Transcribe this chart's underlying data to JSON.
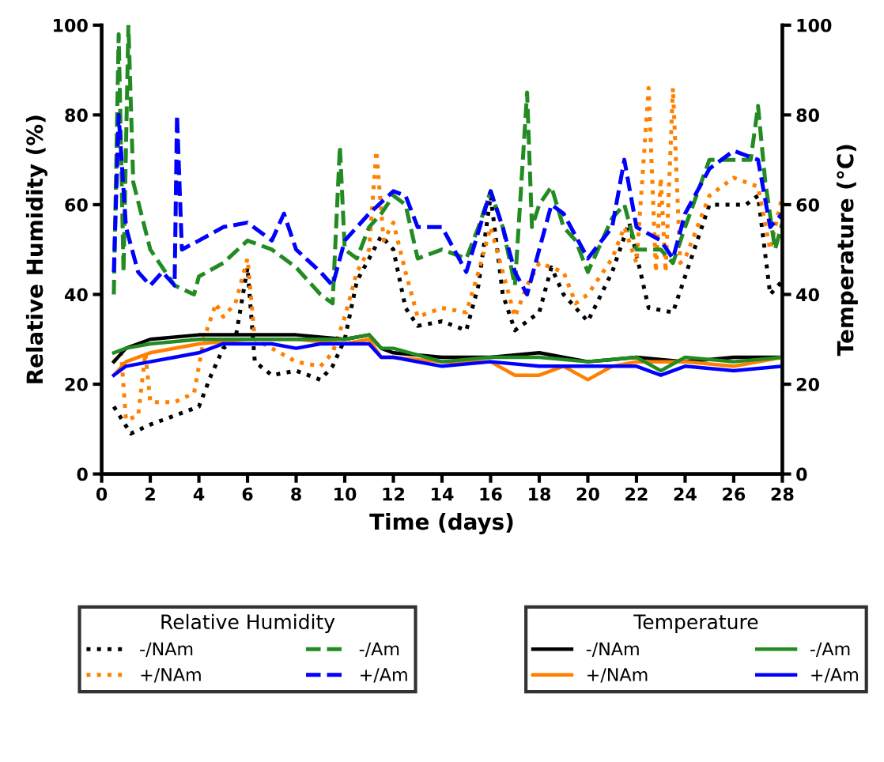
{
  "chart_data": {
    "type": "line",
    "xlabel": "Time (days)",
    "ylabel": "Relative Humidity (%)",
    "y2label": "Temperature (°C)",
    "xlim": [
      0,
      28
    ],
    "xticks": [
      0,
      2,
      4,
      6,
      8,
      10,
      12,
      14,
      16,
      18,
      20,
      22,
      24,
      26,
      28
    ],
    "ylim": [
      0,
      100
    ],
    "yticks": [
      0,
      20,
      40,
      60,
      80,
      100
    ],
    "y2lim": [
      0,
      100
    ],
    "y2ticks": [
      0,
      20,
      40,
      60,
      80,
      100
    ],
    "legend": "bottom",
    "legend_title": [
      "Relative Humidity",
      "Temperature"
    ],
    "grid": false,
    "marker": "none",
    "series": [
      {
        "name": "-/NAm",
        "color": "#000000",
        "axis": "y",
        "line_style": "dotted",
        "x": [
          0.5,
          1.2,
          2,
          3,
          4,
          4.5,
          5,
          5.5,
          6,
          6.3,
          7,
          8,
          9,
          9.5,
          10,
          10.5,
          11,
          11.5,
          12,
          12.5,
          13,
          14,
          15,
          15.5,
          16,
          16.5,
          17,
          18,
          18.5,
          19,
          20,
          21,
          21.7,
          22.5,
          23.5,
          24,
          25,
          26,
          26.5,
          27,
          27.5,
          28
        ],
        "values": [
          15,
          9,
          11,
          13,
          15,
          22,
          28,
          30,
          46,
          25,
          22,
          23,
          21,
          24,
          30,
          43,
          48,
          53,
          50,
          37,
          33,
          34,
          32,
          42,
          62,
          40,
          32,
          36,
          46,
          40,
          34,
          45,
          56,
          37,
          36,
          44,
          60,
          60,
          60,
          62,
          40,
          43
        ]
      },
      {
        "name": "+/NAm",
        "color": "#ff8000",
        "axis": "y",
        "line_style": "dotted",
        "x": [
          0.5,
          0.8,
          1,
          1.5,
          1.8,
          2,
          3,
          3.8,
          4.2,
          4.7,
          5,
          5.5,
          6,
          6.3,
          7,
          8,
          9,
          9.5,
          10,
          10.5,
          11,
          11.3,
          11.6,
          12,
          12.5,
          13,
          14,
          15,
          15.5,
          16,
          17,
          17.5,
          18,
          19,
          19.5,
          20,
          21,
          21.5,
          22,
          22.5,
          22.8,
          23,
          23.2,
          23.5,
          23.8,
          24,
          25,
          26,
          27,
          27.5,
          28
        ],
        "values": [
          25,
          27,
          12,
          13,
          27,
          16,
          16,
          18,
          30,
          38,
          35,
          38,
          48,
          30,
          28,
          25,
          24,
          27,
          35,
          45,
          50,
          72,
          52,
          56,
          45,
          35,
          37,
          36,
          45,
          55,
          35,
          42,
          47,
          45,
          38,
          40,
          48,
          55,
          47,
          86,
          45,
          66,
          45,
          86,
          47,
          48,
          62,
          66,
          64,
          50,
          62
        ]
      },
      {
        "name": "-/Am",
        "color": "#228b22",
        "axis": "y",
        "line_style": "dashed",
        "x": [
          0.5,
          0.7,
          0.9,
          1.1,
          1.3,
          2,
          3,
          3.8,
          4,
          5,
          6,
          7,
          8,
          9,
          9.5,
          9.8,
          10,
          10.5,
          11,
          11.5,
          12,
          12.5,
          13,
          14,
          15,
          15.5,
          16,
          16.5,
          17,
          17.5,
          17.7,
          18,
          18.5,
          19,
          19.5,
          20,
          21,
          21.5,
          22,
          23,
          23.5,
          24,
          25,
          26,
          26.7,
          27,
          27.3,
          27.7,
          28
        ],
        "values": [
          40,
          98,
          45,
          100,
          65,
          50,
          42,
          40,
          44,
          47,
          52,
          50,
          46,
          40,
          38,
          73,
          50,
          48,
          55,
          58,
          62,
          60,
          48,
          50,
          48,
          55,
          63,
          55,
          42,
          85,
          55,
          60,
          64,
          55,
          52,
          45,
          57,
          60,
          50,
          50,
          47,
          55,
          70,
          70,
          70,
          82,
          65,
          50,
          56
        ]
      },
      {
        "name": "+/Am",
        "color": "#0000ff",
        "axis": "y",
        "line_style": "dashed",
        "x": [
          0.5,
          0.7,
          1,
          1.5,
          2,
          2.5,
          3,
          3.1,
          3.3,
          4,
          5,
          6,
          7,
          7.5,
          8,
          9,
          9.5,
          10,
          11,
          12,
          12.5,
          13,
          14,
          15,
          16,
          16.5,
          17,
          17.5,
          18,
          18.5,
          19,
          20,
          21,
          21.5,
          22,
          23,
          23.5,
          24,
          25,
          26,
          27,
          27.5,
          28
        ],
        "values": [
          45,
          80,
          55,
          45,
          42,
          45,
          42,
          80,
          50,
          52,
          55,
          56,
          52,
          58,
          50,
          45,
          42,
          52,
          58,
          63,
          62,
          55,
          55,
          45,
          63,
          55,
          45,
          40,
          50,
          60,
          58,
          48,
          55,
          70,
          55,
          52,
          48,
          58,
          68,
          72,
          70,
          55,
          58
        ]
      },
      {
        "name": "-/NAm",
        "color": "#000000",
        "axis": "y2",
        "line_style": "solid",
        "x": [
          0.5,
          1,
          2,
          4,
          6,
          8,
          10,
          11,
          11.5,
          12,
          14,
          16,
          18,
          20,
          22,
          24,
          26,
          28
        ],
        "values": [
          25,
          28,
          30,
          31,
          31,
          31,
          30,
          31,
          28,
          27,
          26,
          26,
          27,
          25,
          26,
          25,
          26,
          26
        ]
      },
      {
        "name": "+/NAm",
        "color": "#ff8000",
        "axis": "y2",
        "line_style": "solid",
        "x": [
          0.5,
          1,
          2,
          4,
          6,
          8,
          10,
          11,
          11.5,
          12,
          14,
          16,
          17,
          18,
          19,
          20,
          21,
          22,
          24,
          26,
          28
        ],
        "values": [
          22,
          25,
          27,
          29,
          30,
          30,
          29,
          30,
          26,
          26,
          25,
          25,
          22,
          22,
          24,
          21,
          24,
          25,
          25,
          24,
          26
        ]
      },
      {
        "name": "-/Am",
        "color": "#228b22",
        "axis": "y2",
        "line_style": "solid",
        "x": [
          0.5,
          1,
          2,
          4,
          6,
          8,
          10,
          11,
          11.5,
          12,
          14,
          16,
          18,
          20,
          22,
          23,
          24,
          26,
          28
        ],
        "values": [
          27,
          28,
          29,
          30,
          30,
          30,
          30,
          31,
          28,
          28,
          25,
          26,
          26,
          25,
          26,
          23,
          26,
          25,
          26
        ]
      },
      {
        "name": "+/Am",
        "color": "#0000ff",
        "axis": "y2",
        "line_style": "solid",
        "x": [
          0.5,
          1,
          2,
          3,
          4,
          5,
          6,
          7,
          8,
          9,
          10,
          11,
          11.5,
          12,
          14,
          16,
          18,
          20,
          22,
          23,
          24,
          26,
          28
        ],
        "values": [
          22,
          24,
          25,
          26,
          27,
          29,
          29,
          29,
          28,
          29,
          29,
          29,
          26,
          26,
          24,
          25,
          24,
          24,
          24,
          22,
          24,
          23,
          24
        ]
      }
    ]
  }
}
